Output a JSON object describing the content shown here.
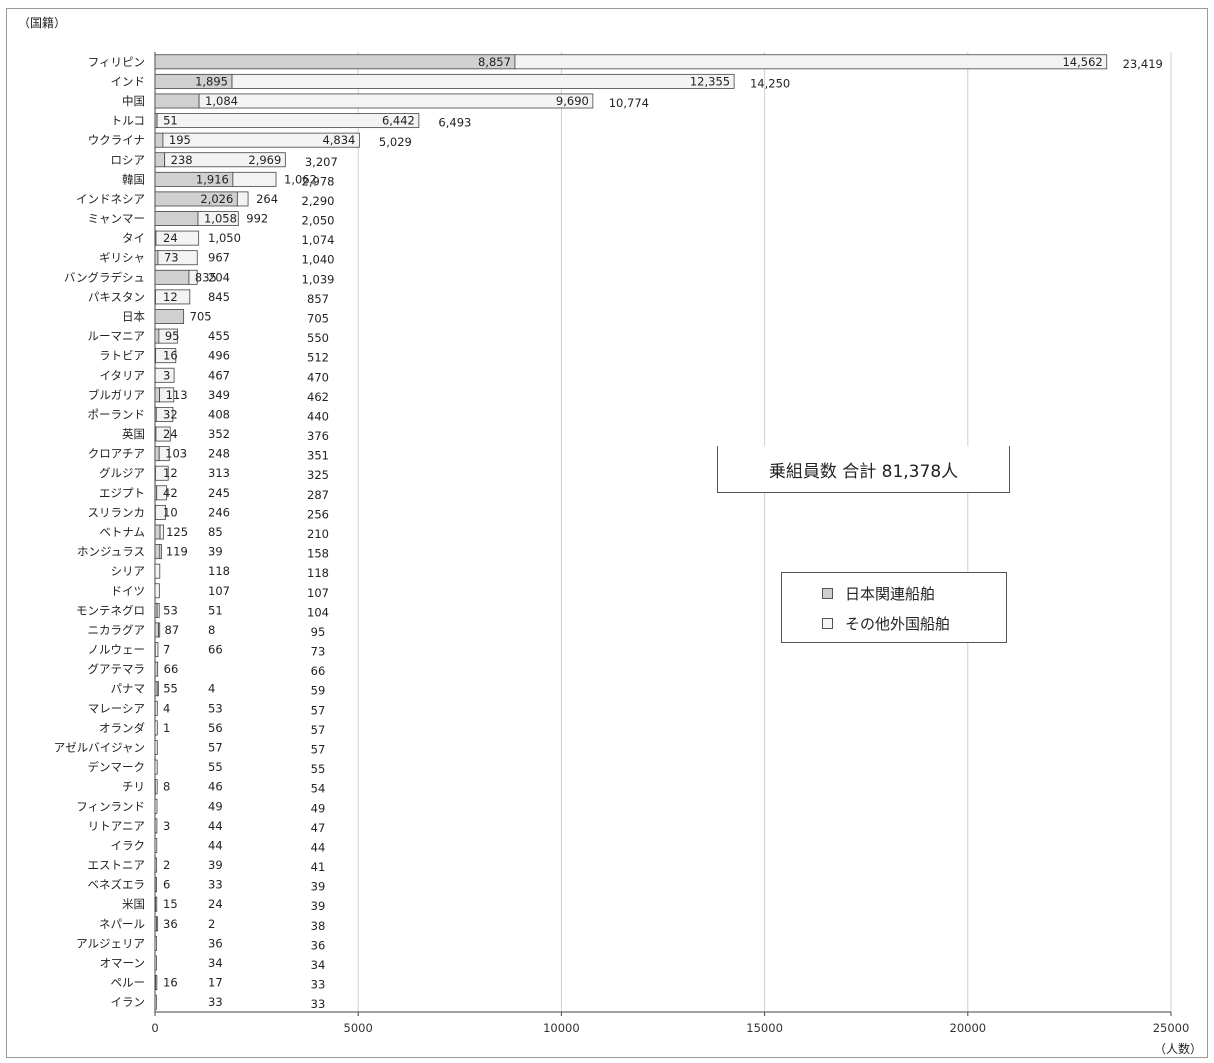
{
  "chart_data": {
    "type": "bar",
    "orientation": "horizontal",
    "stacked": true,
    "ylabel": "（国籍）",
    "xlabel": "（人数）",
    "xlim": [
      0,
      25000
    ],
    "xticks": [
      0,
      5000,
      10000,
      15000,
      20000,
      25000
    ],
    "grid": true,
    "legend_position": "right",
    "series": [
      {
        "name": "日本関連船舶",
        "color": "#d0d0d0"
      },
      {
        "name": "その他外国船舶",
        "color": "#f3f3f3"
      }
    ],
    "annotation": "乗組員数 合計 81,378人",
    "rows": [
      {
        "country": "フィリピン",
        "japan": 8857,
        "japan_label": "8,857",
        "other": 14562,
        "other_label": "14,562",
        "total_label": "23,419"
      },
      {
        "country": "インド",
        "japan": 1895,
        "japan_label": "1,895",
        "other": 12355,
        "other_label": "12,355",
        "total_label": "14,250"
      },
      {
        "country": "中国",
        "japan": 1084,
        "japan_label": "1,084",
        "other": 9690,
        "other_label": "9,690",
        "total_label": "10,774"
      },
      {
        "country": "トルコ",
        "japan": 51,
        "japan_label": "51",
        "other": 6442,
        "other_label": "6,442",
        "total_label": "6,493"
      },
      {
        "country": "ウクライナ",
        "japan": 195,
        "japan_label": "195",
        "other": 4834,
        "other_label": "4,834",
        "total_label": "5,029"
      },
      {
        "country": "ロシア",
        "japan": 238,
        "japan_label": "238",
        "other": 2969,
        "other_label": "2,969",
        "total_label": "3,207"
      },
      {
        "country": "韓国",
        "japan": 1916,
        "japan_label": "1,916",
        "other": 1062,
        "other_label": "1,062",
        "total_label": "2,978"
      },
      {
        "country": "インドネシア",
        "japan": 2026,
        "japan_label": "2,026",
        "other": 264,
        "other_label": "264",
        "total_label": "2,290"
      },
      {
        "country": "ミャンマー",
        "japan": 1058,
        "japan_label": "1,058",
        "other": 992,
        "other_label": "992",
        "total_label": "2,050"
      },
      {
        "country": "タイ",
        "japan": 24,
        "japan_label": "24",
        "other": 1050,
        "other_label": "1,050",
        "total_label": "1,074"
      },
      {
        "country": "ギリシャ",
        "japan": 73,
        "japan_label": "73",
        "other": 967,
        "other_label": "967",
        "total_label": "1,040"
      },
      {
        "country": "バングラデシュ",
        "japan": 835,
        "japan_label": "835",
        "other": 204,
        "other_label": "204",
        "total_label": "1,039"
      },
      {
        "country": "パキスタン",
        "japan": 12,
        "japan_label": "12",
        "other": 845,
        "other_label": "845",
        "total_label": "857"
      },
      {
        "country": "日本",
        "japan": 705,
        "japan_label": "705",
        "other": 0,
        "other_label": "",
        "total_label": "705"
      },
      {
        "country": "ルーマニア",
        "japan": 95,
        "japan_label": "95",
        "other": 455,
        "other_label": "455",
        "total_label": "550"
      },
      {
        "country": "ラトビア",
        "japan": 16,
        "japan_label": "16",
        "other": 496,
        "other_label": "496",
        "total_label": "512"
      },
      {
        "country": "イタリア",
        "japan": 3,
        "japan_label": "3",
        "other": 467,
        "other_label": "467",
        "total_label": "470"
      },
      {
        "country": "ブルガリア",
        "japan": 113,
        "japan_label": "113",
        "other": 349,
        "other_label": "349",
        "total_label": "462"
      },
      {
        "country": "ポーランド",
        "japan": 32,
        "japan_label": "32",
        "other": 408,
        "other_label": "408",
        "total_label": "440"
      },
      {
        "country": "英国",
        "japan": 24,
        "japan_label": "24",
        "other": 352,
        "other_label": "352",
        "total_label": "376"
      },
      {
        "country": "クロアチア",
        "japan": 103,
        "japan_label": "103",
        "other": 248,
        "other_label": "248",
        "total_label": "351"
      },
      {
        "country": "グルジア",
        "japan": 12,
        "japan_label": "12",
        "other": 313,
        "other_label": "313",
        "total_label": "325"
      },
      {
        "country": "エジプト",
        "japan": 42,
        "japan_label": "42",
        "other": 245,
        "other_label": "245",
        "total_label": "287"
      },
      {
        "country": "スリランカ",
        "japan": 10,
        "japan_label": "10",
        "other": 246,
        "other_label": "246",
        "total_label": "256"
      },
      {
        "country": "ベトナム",
        "japan": 125,
        "japan_label": "125",
        "other": 85,
        "other_label": "85",
        "total_label": "210"
      },
      {
        "country": "ホンジュラス",
        "japan": 119,
        "japan_label": "119",
        "other": 39,
        "other_label": "39",
        "total_label": "158"
      },
      {
        "country": "シリア",
        "japan": 0,
        "japan_label": "",
        "other": 118,
        "other_label": "118",
        "total_label": "118"
      },
      {
        "country": "ドイツ",
        "japan": 0,
        "japan_label": "",
        "other": 107,
        "other_label": "107",
        "total_label": "107"
      },
      {
        "country": "モンテネグロ",
        "japan": 53,
        "japan_label": "53",
        "other": 51,
        "other_label": "51",
        "total_label": "104"
      },
      {
        "country": "ニカラグア",
        "japan": 87,
        "japan_label": "87",
        "other": 8,
        "other_label": "8",
        "total_label": "95"
      },
      {
        "country": "ノルウェー",
        "japan": 7,
        "japan_label": "7",
        "other": 66,
        "other_label": "66",
        "total_label": "73"
      },
      {
        "country": "グアテマラ",
        "japan": 66,
        "japan_label": "66",
        "other": 0,
        "other_label": "",
        "total_label": "66"
      },
      {
        "country": "パナマ",
        "japan": 55,
        "japan_label": "55",
        "other": 4,
        "other_label": "4",
        "total_label": "59"
      },
      {
        "country": "マレーシア",
        "japan": 4,
        "japan_label": "4",
        "other": 53,
        "other_label": "53",
        "total_label": "57"
      },
      {
        "country": "オランダ",
        "japan": 1,
        "japan_label": "1",
        "other": 56,
        "other_label": "56",
        "total_label": "57"
      },
      {
        "country": "アゼルバイジャン",
        "japan": 0,
        "japan_label": "",
        "other": 57,
        "other_label": "57",
        "total_label": "57"
      },
      {
        "country": "デンマーク",
        "japan": 0,
        "japan_label": "",
        "other": 55,
        "other_label": "55",
        "total_label": "55"
      },
      {
        "country": "チリ",
        "japan": 8,
        "japan_label": "8",
        "other": 46,
        "other_label": "46",
        "total_label": "54"
      },
      {
        "country": "フィンランド",
        "japan": 0,
        "japan_label": "",
        "other": 49,
        "other_label": "49",
        "total_label": "49"
      },
      {
        "country": "リトアニア",
        "japan": 3,
        "japan_label": "3",
        "other": 44,
        "other_label": "44",
        "total_label": "47"
      },
      {
        "country": "イラク",
        "japan": 0,
        "japan_label": "",
        "other": 44,
        "other_label": "44",
        "total_label": "44"
      },
      {
        "country": "エストニア",
        "japan": 2,
        "japan_label": "2",
        "other": 39,
        "other_label": "39",
        "total_label": "41"
      },
      {
        "country": "ベネズエラ",
        "japan": 6,
        "japan_label": "6",
        "other": 33,
        "other_label": "33",
        "total_label": "39"
      },
      {
        "country": "米国",
        "japan": 15,
        "japan_label": "15",
        "other": 24,
        "other_label": "24",
        "total_label": "39"
      },
      {
        "country": "ネパール",
        "japan": 36,
        "japan_label": "36",
        "other": 2,
        "other_label": "2",
        "total_label": "38"
      },
      {
        "country": "アルジェリア",
        "japan": 0,
        "japan_label": "",
        "other": 36,
        "other_label": "36",
        "total_label": "36"
      },
      {
        "country": "オマーン",
        "japan": 0,
        "japan_label": "",
        "other": 34,
        "other_label": "34",
        "total_label": "34"
      },
      {
        "country": "ペルー",
        "japan": 16,
        "japan_label": "16",
        "other": 17,
        "other_label": "17",
        "total_label": "33"
      },
      {
        "country": "イラン",
        "japan": 0,
        "japan_label": "",
        "other": 33,
        "other_label": "33",
        "total_label": "33"
      }
    ]
  }
}
